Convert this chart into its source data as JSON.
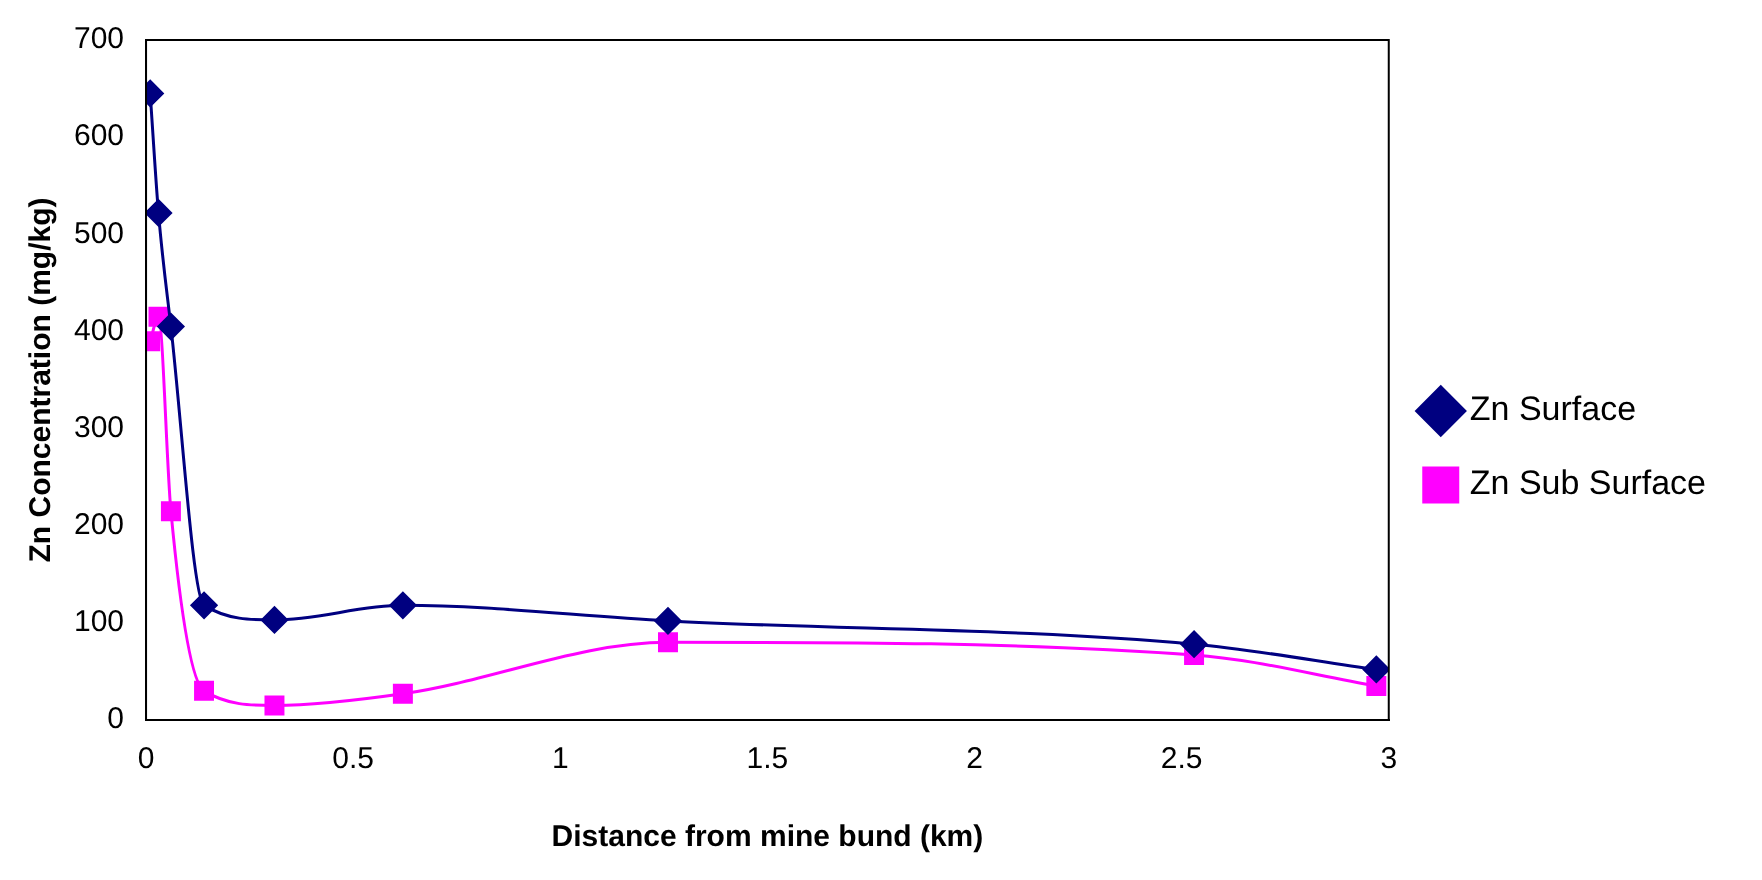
{
  "chart_data": {
    "type": "line",
    "xlabel": "Distance from mine bund (km)",
    "ylabel": "Zn Concentration (mg/kg)",
    "xlim": [
      0,
      3
    ],
    "xticks": [
      0,
      0.5,
      1,
      1.5,
      2,
      2.5,
      3
    ],
    "ylim": [
      0,
      700
    ],
    "yticks": [
      0,
      100,
      200,
      300,
      400,
      500,
      600,
      700
    ],
    "grid": false,
    "legend": "right",
    "series": [
      {
        "name": "Zn Surface",
        "color": "#000080",
        "marker": "diamond",
        "x": [
          0.01,
          0.03,
          0.06,
          0.14,
          0.31,
          0.62,
          1.26,
          2.53,
          2.97
        ],
        "values": [
          645,
          522,
          405,
          118,
          103,
          118,
          102,
          78,
          52
        ]
      },
      {
        "name": "Zn Sub Surface",
        "color": "#ff00ff",
        "marker": "square",
        "x": [
          0.01,
          0.03,
          0.06,
          0.14,
          0.31,
          0.62,
          1.26,
          2.53,
          2.97
        ],
        "values": [
          390,
          415,
          215,
          30,
          15,
          27,
          80,
          67,
          35
        ]
      }
    ]
  }
}
